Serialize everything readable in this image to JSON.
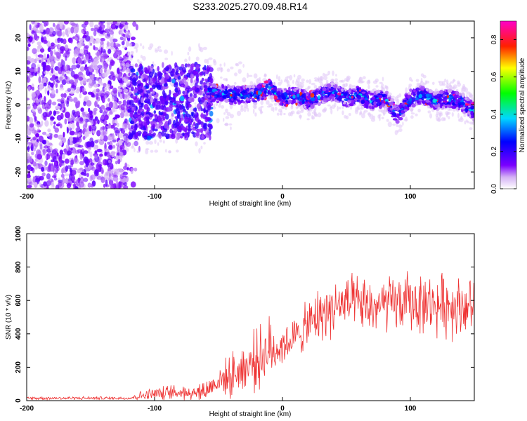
{
  "figure_title": "S233.2025.270.09.48.R14",
  "chart_data": [
    {
      "type": "heatmap",
      "panel": "top",
      "title": "S233.2025.270.09.48.R14",
      "xlabel": "Height of straight line (km)",
      "ylabel": "Frequency (Hz)",
      "xlim": [
        -200,
        150
      ],
      "ylim": [
        -25,
        25
      ],
      "xticks": [
        -200,
        -100,
        0,
        100
      ],
      "yticks": [
        -20,
        -10,
        0,
        10,
        20
      ],
      "colorbar": {
        "label": "Normalized spectral amplitude",
        "range": [
          0.0,
          0.9
        ],
        "ticks": [
          0.0,
          0.2,
          0.4,
          0.6,
          0.8
        ],
        "colormap": "rainbow (white-violet-blue-cyan-green-yellow-red-magenta)"
      },
      "regions": [
        {
          "x_range": [
            -200,
            -120
          ],
          "description": "broadband noise across all frequencies",
          "amplitude_approx": 0.05
        },
        {
          "x_range": [
            -120,
            -60
          ],
          "description": "scattered energy between -10 and 12 Hz",
          "amplitude_approx": 0.1
        },
        {
          "x_range": [
            -60,
            150
          ],
          "description": "coherent signal band near 0 to 5 Hz",
          "amplitude_approx": 0.4
        }
      ],
      "ridge_center_hz": {
        "x": [
          -60,
          -40,
          -20,
          -10,
          0,
          10,
          20,
          30,
          40,
          50,
          60,
          70,
          80,
          90,
          100,
          110,
          120,
          130,
          140,
          150
        ],
        "y": [
          4,
          3,
          3,
          5,
          2,
          3,
          1,
          3,
          4,
          2,
          3,
          1,
          2,
          -3,
          2,
          3,
          1,
          2,
          1,
          -2
        ]
      }
    },
    {
      "type": "line",
      "panel": "bottom",
      "xlabel": "Height of straight line (km)",
      "ylabel": "SNR (10 * v/v)",
      "xlim": [
        -200,
        150
      ],
      "ylim": [
        0,
        1000
      ],
      "xticks": [
        -200,
        -100,
        0,
        100
      ],
      "yticks": [
        0,
        200,
        400,
        600,
        800,
        1000
      ],
      "series": [
        {
          "name": "SNR",
          "color": "#ee3333",
          "x": [
            -200,
            -150,
            -120,
            -110,
            -100,
            -80,
            -60,
            -50,
            -40,
            -30,
            -20,
            -10,
            0,
            10,
            20,
            30,
            40,
            50,
            60,
            70,
            80,
            90,
            100,
            110,
            120,
            130,
            140,
            150
          ],
          "y": [
            15,
            15,
            15,
            30,
            40,
            50,
            60,
            120,
            150,
            200,
            250,
            300,
            330,
            380,
            450,
            520,
            560,
            580,
            570,
            560,
            570,
            580,
            590,
            580,
            570,
            580,
            570,
            560
          ],
          "spread": [
            10,
            10,
            10,
            30,
            40,
            50,
            70,
            80,
            130,
            160,
            180,
            200,
            120,
            120,
            150,
            170,
            170,
            170,
            170,
            170,
            170,
            170,
            190,
            180,
            180,
            200,
            180,
            160
          ]
        }
      ]
    }
  ]
}
